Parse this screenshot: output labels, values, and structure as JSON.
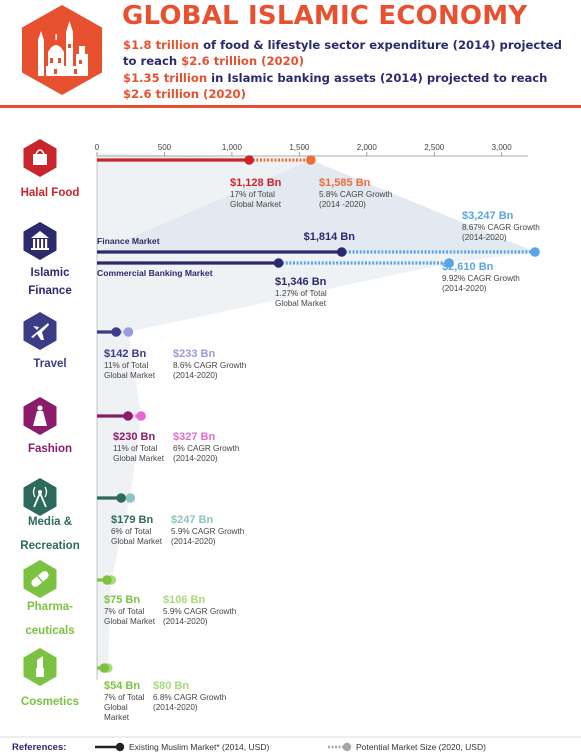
{
  "header": {
    "title": "GLOBAL ISLAMIC ECONOMY",
    "stats": [
      {
        "a": "$1.8 trillion",
        "b": " of food & lifestyle sector expenditure (2014) projected to reach ",
        "c": "$2.6 trillion (2020)"
      },
      {
        "a": "$1.35 trillion",
        "b": " in Islamic banking assets (2014) projected to reach ",
        "c": "$2.6 trillion (2020)"
      }
    ]
  },
  "colors": {
    "accent": "#e8512f",
    "navy": "#2c2a6c",
    "halal": "#c8262c",
    "halal_light": "#f06a3a",
    "finance": "#2c2a6c",
    "finance_light": "#5aa5e6",
    "travel": "#3b3b86",
    "travel_light": "#9a9bd8",
    "fashion": "#8a1c6a",
    "fashion_light": "#e36bd0",
    "media": "#2e6a5c",
    "media_light": "#8ec4c0",
    "pharma": "#7cc242",
    "pharma_light": "#a8da7a",
    "cosmetics": "#7cc242",
    "cosmetics_light": "#a8da7a"
  },
  "chart_data": {
    "type": "bar",
    "x_axis": {
      "ticks": [
        "0",
        "500",
        "1,000",
        "1,500",
        "2,000",
        "2,500",
        "3,000"
      ],
      "tick_values": [
        0,
        500,
        1000,
        1500,
        2000,
        2500,
        3000
      ],
      "range": [
        0,
        3000
      ]
    },
    "categories": [
      {
        "id": "halal",
        "name": "Halal Food",
        "icon": "halal-food-icon",
        "bars": [
          {
            "label": "",
            "existing": 1128,
            "potential": 1585,
            "existing_label": "$1,128 Bn",
            "existing_note": [
              "17% of Total",
              "Global Market"
            ],
            "potential_label": "$1,585 Bn",
            "potential_note": [
              "5.8% CAGR Growth",
              "(2014 -2020)"
            ]
          }
        ]
      },
      {
        "id": "finance",
        "name": [
          "Islamic",
          "Finance"
        ],
        "icon": "islamic-finance-icon",
        "bars": [
          {
            "label": "Finance Market",
            "existing": 1814,
            "potential": 3247,
            "existing_label": "$1,814 Bn",
            "existing_note": [],
            "potential_label": "$3,247 Bn",
            "potential_note": [
              "8.67% CAGR Growth",
              "(2014-2020)"
            ]
          },
          {
            "label": "Commercial Banking Market",
            "existing": 1346,
            "potential": 2610,
            "existing_label": "$1,346 Bn",
            "existing_note": [
              "1.27% of Total",
              "Global Market"
            ],
            "potential_label": "$2,610 Bn",
            "potential_note": [
              "9.92% CAGR Growth",
              "(2014-2020)"
            ]
          }
        ]
      },
      {
        "id": "travel",
        "name": "Travel",
        "icon": "travel-icon",
        "bars": [
          {
            "label": "",
            "existing": 142,
            "potential": 233,
            "existing_label": "$142 Bn",
            "existing_note": [
              "11% of Total",
              "Global Market"
            ],
            "potential_label": "$233 Bn",
            "potential_note": [
              "8.6% CAGR Growth",
              "(2014-2020)"
            ]
          }
        ]
      },
      {
        "id": "fashion",
        "name": "Fashion",
        "icon": "fashion-icon",
        "bars": [
          {
            "label": "",
            "existing": 230,
            "potential": 327,
            "existing_label": "$230 Bn",
            "existing_note": [
              "11% of Total",
              "Global Market"
            ],
            "potential_label": "$327 Bn",
            "potential_note": [
              "6% CAGR Growth",
              "(2014-2020)"
            ]
          }
        ]
      },
      {
        "id": "media",
        "name": [
          "Media &",
          "Recreation"
        ],
        "icon": "media-recreation-icon",
        "bars": [
          {
            "label": "",
            "existing": 179,
            "potential": 247,
            "existing_label": "$179 Bn",
            "existing_note": [
              "6% of Total",
              "Global Market"
            ],
            "potential_label": "$247 Bn",
            "potential_note": [
              "5.9% CAGR Growth",
              "(2014-2020)"
            ]
          }
        ]
      },
      {
        "id": "pharma",
        "name": [
          "Pharma-",
          "ceuticals"
        ],
        "icon": "pharmaceuticals-icon",
        "bars": [
          {
            "label": "",
            "existing": 75,
            "potential": 106,
            "existing_label": "$75 Bn",
            "existing_note": [
              "7% of Total",
              "Global Market"
            ],
            "potential_label": "$106 Bn",
            "potential_note": [
              "5.9% CAGR Growth",
              "(2014-2020)"
            ]
          }
        ]
      },
      {
        "id": "cosmetics",
        "name": "Cosmetics",
        "icon": "cosmetics-icon",
        "bars": [
          {
            "label": "",
            "existing": 54,
            "potential": 80,
            "existing_label": "$54 Bn",
            "existing_note": [
              "7% of Total",
              "Global",
              "Market"
            ],
            "potential_label": "$80 Bn",
            "potential_note": [
              "6.8% CAGR Growth",
              "(2014-2020)"
            ]
          }
        ]
      }
    ],
    "legend": {
      "title": "References:",
      "existing": "Existing Muslim Market* (2014, USD)",
      "potential": "Potential Market Size (2020, USD)",
      "placement": "bottom"
    }
  }
}
